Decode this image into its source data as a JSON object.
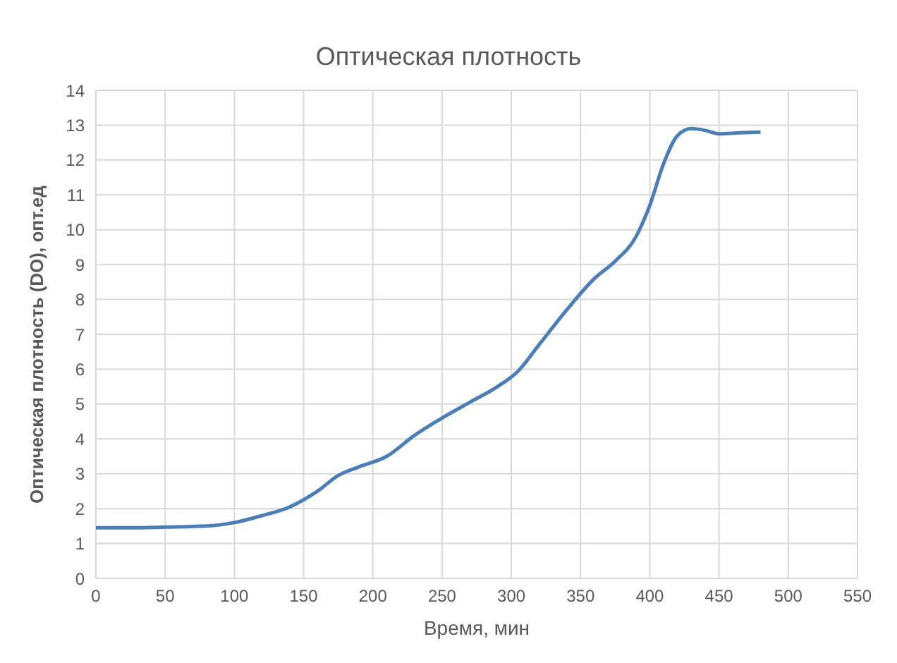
{
  "chart_data": {
    "type": "line",
    "title": "Оптическая плотность",
    "xlabel": "Время, мин",
    "ylabel": "Оптическая плотность (DO), опт.ед",
    "x": [
      0,
      25,
      50,
      80,
      100,
      120,
      140,
      160,
      175,
      190,
      210,
      230,
      250,
      270,
      290,
      305,
      320,
      340,
      360,
      375,
      390,
      400,
      410,
      420,
      430,
      440,
      450,
      465,
      480
    ],
    "series": [
      {
        "color": "#4a7ebb",
        "values": [
          1.45,
          1.45,
          1.47,
          1.5,
          1.6,
          1.8,
          2.05,
          2.5,
          2.95,
          3.2,
          3.5,
          4.1,
          4.6,
          5.05,
          5.5,
          5.95,
          6.7,
          7.7,
          8.6,
          9.1,
          9.8,
          10.7,
          11.9,
          12.7,
          12.9,
          12.85,
          12.75,
          12.78,
          12.8
        ]
      }
    ],
    "xlim": [
      0,
      550
    ],
    "xticks": [
      0,
      50,
      100,
      150,
      200,
      250,
      300,
      350,
      400,
      450,
      500,
      550
    ],
    "ylim": [
      0,
      14
    ],
    "yticks": [
      0,
      1,
      2,
      3,
      4,
      5,
      6,
      7,
      8,
      9,
      10,
      11,
      12,
      13,
      14
    ],
    "grid": true,
    "legend": false,
    "marker": "none",
    "line_style": "solid"
  }
}
